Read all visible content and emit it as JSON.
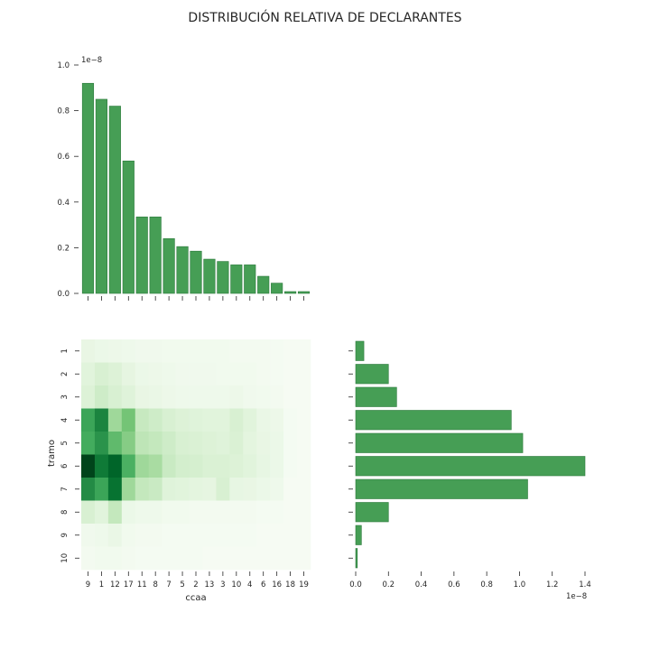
{
  "chart_data": {
    "type": "heatmap",
    "title": "DISTRIBUCIÓN RELATIVA DE DECLARANTES",
    "heatmap": {
      "xlabel": "ccaa",
      "ylabel": "tramo",
      "x_categories": [
        "9",
        "1",
        "12",
        "17",
        "11",
        "8",
        "7",
        "5",
        "2",
        "13",
        "3",
        "10",
        "4",
        "6",
        "16",
        "18",
        "19"
      ],
      "y_categories": [
        "1",
        "2",
        "3",
        "4",
        "5",
        "6",
        "7",
        "8",
        "9",
        "10"
      ],
      "values": [
        [
          0.1,
          0.08,
          0.07,
          0.06,
          0.05,
          0.05,
          0.04,
          0.04,
          0.04,
          0.04,
          0.04,
          0.03,
          0.03,
          0.03,
          0.02,
          0.01,
          0.01
        ],
        [
          0.14,
          0.18,
          0.16,
          0.12,
          0.08,
          0.07,
          0.06,
          0.05,
          0.05,
          0.05,
          0.04,
          0.04,
          0.04,
          0.03,
          0.02,
          0.01,
          0.01
        ],
        [
          0.16,
          0.22,
          0.18,
          0.15,
          0.1,
          0.09,
          0.07,
          0.06,
          0.06,
          0.06,
          0.06,
          0.07,
          0.05,
          0.04,
          0.03,
          0.01,
          0.01
        ],
        [
          0.65,
          0.78,
          0.38,
          0.5,
          0.25,
          0.22,
          0.18,
          0.16,
          0.15,
          0.14,
          0.14,
          0.18,
          0.14,
          0.09,
          0.07,
          0.02,
          0.01
        ],
        [
          0.62,
          0.72,
          0.55,
          0.45,
          0.28,
          0.26,
          0.22,
          0.18,
          0.17,
          0.16,
          0.15,
          0.17,
          0.13,
          0.1,
          0.08,
          0.02,
          0.01
        ],
        [
          1.0,
          0.82,
          0.9,
          0.6,
          0.38,
          0.35,
          0.24,
          0.2,
          0.19,
          0.17,
          0.17,
          0.16,
          0.14,
          0.11,
          0.08,
          0.02,
          0.01
        ],
        [
          0.75,
          0.65,
          0.85,
          0.38,
          0.26,
          0.24,
          0.15,
          0.14,
          0.13,
          0.12,
          0.18,
          0.11,
          0.1,
          0.08,
          0.06,
          0.01,
          0.01
        ],
        [
          0.18,
          0.14,
          0.26,
          0.08,
          0.06,
          0.06,
          0.04,
          0.04,
          0.03,
          0.03,
          0.03,
          0.03,
          0.03,
          0.02,
          0.02,
          0.01,
          0.01
        ],
        [
          0.05,
          0.06,
          0.09,
          0.04,
          0.03,
          0.03,
          0.02,
          0.02,
          0.02,
          0.02,
          0.02,
          0.02,
          0.02,
          0.01,
          0.01,
          0.01,
          0.01
        ],
        [
          0.03,
          0.04,
          0.04,
          0.03,
          0.02,
          0.02,
          0.02,
          0.02,
          0.02,
          0.01,
          0.01,
          0.01,
          0.01,
          0.01,
          0.01,
          0.01,
          0.01
        ]
      ]
    },
    "top_bars": {
      "type": "bar",
      "categories": [
        "9",
        "1",
        "12",
        "17",
        "11",
        "8",
        "7",
        "5",
        "2",
        "13",
        "3",
        "10",
        "4",
        "6",
        "16",
        "18",
        "19"
      ],
      "values": [
        0.92,
        0.85,
        0.82,
        0.58,
        0.335,
        0.335,
        0.24,
        0.205,
        0.185,
        0.15,
        0.14,
        0.125,
        0.125,
        0.075,
        0.045,
        0.008,
        0.008
      ],
      "ylim": [
        0,
        1.0
      ],
      "yticks": [
        "0.0",
        "0.2",
        "0.4",
        "0.6",
        "0.8",
        "1.0"
      ],
      "scale_label": "1e−8"
    },
    "right_bars": {
      "type": "bar",
      "orientation": "horizontal",
      "categories": [
        "1",
        "2",
        "3",
        "4",
        "5",
        "6",
        "7",
        "8",
        "9",
        "10"
      ],
      "values": [
        0.05,
        0.2,
        0.25,
        0.95,
        1.02,
        1.4,
        1.05,
        0.2,
        0.035,
        0.01
      ],
      "xlim": [
        0,
        1.4
      ],
      "xticks": [
        "0.0",
        "0.2",
        "0.4",
        "0.6",
        "0.8",
        "1.0",
        "1.2",
        "1.4"
      ],
      "scale_label": "1e−8"
    },
    "colors": {
      "bar_fill": "#469e55",
      "bar_edge": "#2d7a3d",
      "heat_low": "#f7fcf5",
      "heat_high": "#00441b"
    }
  }
}
